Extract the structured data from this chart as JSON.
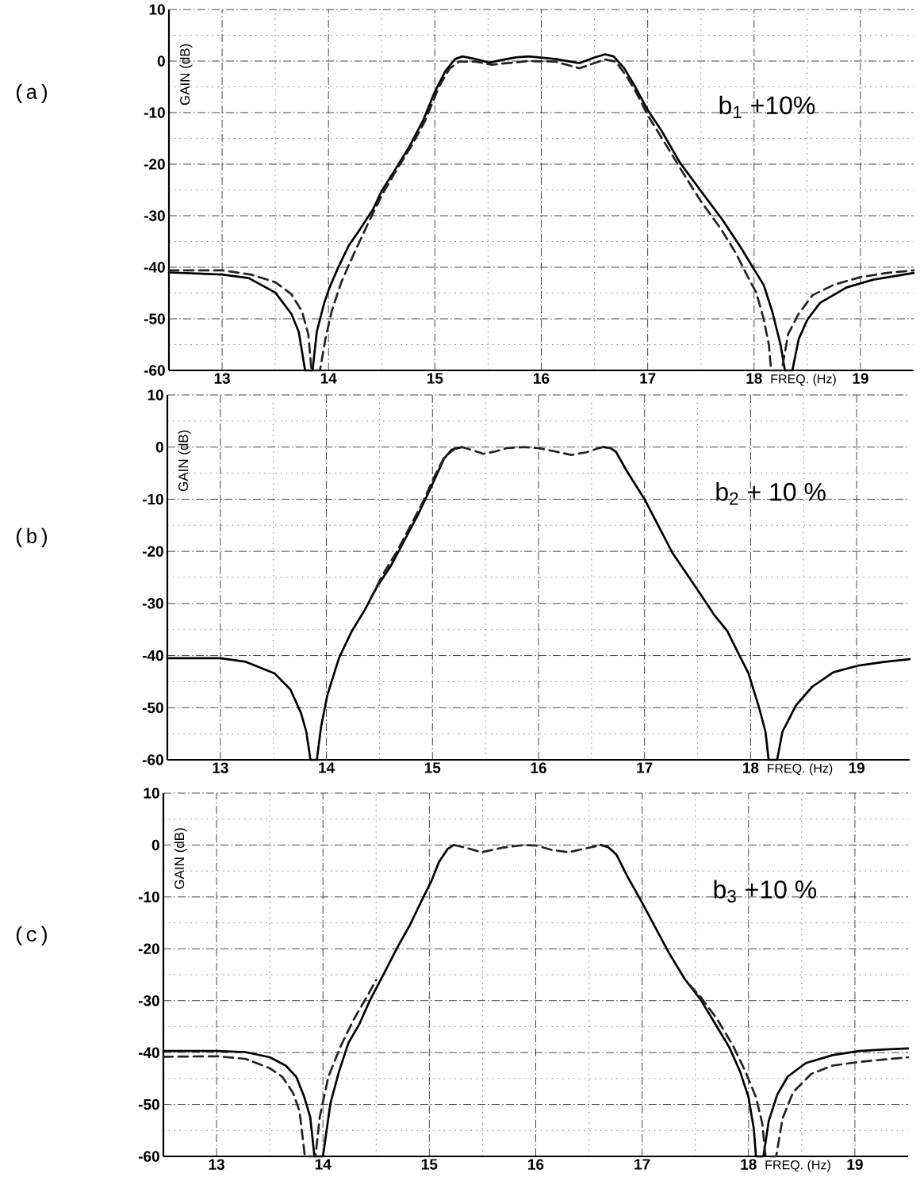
{
  "chart_data": [
    {
      "type": "line",
      "title": "(a)",
      "xlabel": "FREQ. (Hz)",
      "ylabel": "GAIN (dB)",
      "annotations": [
        "b$_{1}$ +10%"
      ],
      "xlim": [
        12.5,
        19.5
      ],
      "ylim": [
        -60,
        10
      ],
      "xticks": [
        13,
        14,
        15,
        16,
        17,
        18,
        19
      ],
      "yticks": [
        -60,
        -50,
        -40,
        -30,
        -20,
        -10,
        0,
        10
      ],
      "grid": true,
      "series": [
        {
          "color": "#000000",
          "line_style": "solid",
          "x": [
            12.5,
            13.0,
            13.25,
            13.5,
            13.65,
            13.72,
            13.78,
            13.85,
            13.89,
            13.96,
            14.01,
            14.09,
            14.19,
            14.29,
            14.42,
            14.5,
            14.64,
            14.76,
            14.89,
            15.0,
            15.1,
            15.19,
            15.26,
            15.38,
            15.51,
            15.63,
            15.76,
            15.88,
            16.13,
            16.36,
            16.5,
            16.6,
            16.68,
            16.78,
            16.88,
            17.0,
            17.13,
            17.3,
            17.5,
            17.7,
            17.88,
            18.0,
            18.09,
            18.17,
            18.25,
            18.29,
            18.36,
            18.42,
            18.5,
            18.62,
            18.87,
            19.12,
            19.5
          ],
          "values": [
            -41.0,
            -41.4,
            -42.1,
            -44.9,
            -49.0,
            -52.5,
            -60,
            -60,
            -52.5,
            -46.9,
            -43.9,
            -40.1,
            -35.8,
            -32.8,
            -28.7,
            -25.2,
            -20.6,
            -16.6,
            -11.5,
            -5.9,
            -1.9,
            0.4,
            0.9,
            0.4,
            -0.3,
            0.2,
            0.7,
            0.9,
            0.4,
            -0.4,
            0.7,
            1.3,
            0.9,
            -1.4,
            -4.9,
            -9.5,
            -13.5,
            -19.6,
            -25.2,
            -30.7,
            -36.3,
            -40.4,
            -43.4,
            -48.5,
            -55.1,
            -60,
            -60,
            -53.9,
            -50.2,
            -46.9,
            -43.9,
            -42.4,
            -41.1
          ]
        },
        {
          "color": "#222222",
          "line_style": "dashed",
          "x": [
            12.5,
            13.0,
            13.27,
            13.5,
            13.65,
            13.75,
            13.81,
            13.84,
            13.92,
            13.97,
            14.03,
            14.12,
            14.24,
            14.39,
            14.51,
            14.64,
            14.79,
            14.91,
            15.04,
            15.14,
            15.23,
            15.38,
            15.53,
            15.68,
            15.88,
            16.13,
            16.36,
            16.5,
            16.6,
            16.7,
            16.8,
            16.9,
            17.0,
            17.15,
            17.33,
            17.5,
            17.68,
            17.83,
            17.93,
            18.02,
            18.09,
            18.14,
            18.16,
            18.26,
            18.32,
            18.42,
            18.55,
            18.75,
            19.0,
            19.25,
            19.5
          ],
          "values": [
            -40.6,
            -40.6,
            -41.4,
            -42.9,
            -45.2,
            -48.5,
            -53.0,
            -60,
            -60,
            -54.0,
            -48.5,
            -42.9,
            -37.3,
            -30.7,
            -25.7,
            -21.1,
            -16.1,
            -11.5,
            -4.9,
            -1.4,
            -0.1,
            -0.1,
            -0.7,
            -0.4,
            0.0,
            -0.1,
            -1.4,
            -0.4,
            0.3,
            -0.1,
            -2.9,
            -6.4,
            -10.5,
            -15.5,
            -21.6,
            -27.2,
            -32.3,
            -37.3,
            -41.4,
            -44.9,
            -50.0,
            -55.1,
            -60,
            -60,
            -53.0,
            -49.0,
            -45.4,
            -43.4,
            -41.9,
            -41.1,
            -40.6
          ]
        }
      ]
    },
    {
      "type": "line",
      "title": "(b)",
      "xlabel": "FREQ. (Hz)",
      "ylabel": "GAIN (dB)",
      "annotations": [
        "b$_{2}$ + 10 %"
      ],
      "xlim": [
        12.5,
        19.5
      ],
      "ylim": [
        -60,
        10
      ],
      "xticks": [
        13,
        14,
        15,
        16,
        17,
        18,
        19
      ],
      "yticks": [
        -60,
        -50,
        -40,
        -30,
        -20,
        -10,
        0,
        10
      ],
      "grid": true,
      "series": [
        {
          "color": "#000000",
          "line_style": "solid",
          "x": [
            12.5,
            13.0,
            13.24,
            13.51,
            13.66,
            13.76,
            13.81,
            13.85,
            13.91,
            13.95,
            14.01,
            14.12,
            14.24,
            14.36,
            14.48,
            14.61,
            14.73,
            14.86,
            14.98,
            15.11,
            15.18,
            15.28,
            15.9,
            16.61,
            16.68,
            16.73,
            16.83,
            17.0,
            17.13,
            17.26,
            17.41,
            17.53,
            17.66,
            17.78,
            17.9,
            17.98,
            18.08,
            18.14,
            18.17,
            18.25,
            18.3,
            18.43,
            18.58,
            18.78,
            19.02,
            19.27,
            19.5
          ],
          "values": [
            -40.5,
            -40.5,
            -41.2,
            -43.4,
            -46.5,
            -51.0,
            -54.6,
            -60,
            -60,
            -53.6,
            -47.5,
            -40.4,
            -35.3,
            -31.3,
            -26.7,
            -22.7,
            -18.1,
            -13.1,
            -8.0,
            -2.2,
            -0.5,
            0,
            null,
            0,
            -0.2,
            -0.9,
            -4.5,
            -10.0,
            -15.1,
            -20.2,
            -24.7,
            -28.3,
            -32.3,
            -35.3,
            -40.2,
            -43.4,
            -50.0,
            -54.6,
            -60,
            -60,
            -54.6,
            -49.5,
            -46.0,
            -43.2,
            -41.9,
            -41.2,
            -40.7
          ]
        },
        {
          "color": "#222222",
          "line_style": "dashed",
          "x": [
            14.41,
            14.53,
            14.66,
            14.78,
            14.91,
            15.01,
            15.11,
            15.21,
            15.28,
            15.38,
            15.48,
            15.6,
            15.7,
            15.86,
            16.0,
            16.15,
            16.31,
            16.45,
            16.55,
            16.61,
            16.68
          ],
          "values": [
            -29.3,
            -24.5,
            -20.2,
            -15.6,
            -10.5,
            -6.0,
            -2.0,
            -0.3,
            0,
            -0.6,
            -1.3,
            -0.8,
            -0.2,
            0,
            -0.2,
            -0.8,
            -1.5,
            -1.0,
            -0.3,
            0,
            -0.2
          ]
        }
      ]
    },
    {
      "type": "line",
      "title": "(c)",
      "xlabel": "FREQ. (Hz)",
      "ylabel": "GAIN (dB)",
      "annotations": [
        "b$_{3}$ +10 %"
      ],
      "xlim": [
        12.5,
        19.5
      ],
      "ylim": [
        -60,
        10
      ],
      "xticks": [
        13,
        14,
        15,
        16,
        17,
        18,
        19
      ],
      "yticks": [
        -60,
        -50,
        -40,
        -30,
        -20,
        -10,
        0,
        10
      ],
      "grid": true,
      "series": [
        {
          "color": "#000000",
          "line_style": "solid",
          "x": [
            12.5,
            13.0,
            13.27,
            13.5,
            13.65,
            13.75,
            13.82,
            13.88,
            13.92,
            14.0,
            14.07,
            14.15,
            14.24,
            14.34,
            14.44,
            14.57,
            14.69,
            14.82,
            14.94,
            15.02,
            15.09,
            15.17,
            15.23,
            15.9,
            16.61,
            16.68,
            16.76,
            16.86,
            17.0,
            17.13,
            17.25,
            17.4,
            17.55,
            17.7,
            17.82,
            17.92,
            18.0,
            18.05,
            18.07,
            18.14,
            18.19,
            18.27,
            18.37,
            18.54,
            18.79,
            19.04,
            19.29,
            19.5
          ],
          "values": [
            -39.7,
            -39.7,
            -39.9,
            -40.9,
            -42.5,
            -44.7,
            -48.3,
            -52.4,
            -60,
            -60,
            -49.8,
            -43.7,
            -38.1,
            -34.6,
            -30.0,
            -24.9,
            -20.1,
            -15.3,
            -10.2,
            -6.9,
            -3.3,
            -0.8,
            0,
            null,
            0,
            -0.4,
            -1.9,
            -6.0,
            -11.1,
            -16.1,
            -20.7,
            -25.8,
            -29.8,
            -34.9,
            -39.0,
            -43.6,
            -48.6,
            -54.7,
            -60,
            -60,
            -53.2,
            -48.1,
            -44.6,
            -42.0,
            -40.5,
            -39.7,
            -39.4,
            -39.2
          ]
        },
        {
          "color": "#222222",
          "line_style": "dashed",
          "x": [
            12.5,
            13.0,
            13.27,
            13.5,
            13.62,
            13.72,
            13.78,
            13.83,
            13.93,
            13.97,
            14.05,
            14.17,
            14.29,
            14.42,
            14.5,
            14.9,
            15.23,
            15.34,
            15.49,
            15.69,
            15.89,
            16.01,
            16.14,
            16.31,
            16.46,
            16.61,
            16.67,
            17.0,
            17.45,
            17.55,
            17.7,
            17.85,
            17.97,
            18.07,
            18.13,
            18.16,
            18.26,
            18.32,
            18.42,
            18.59,
            18.79,
            19.04,
            19.29,
            19.5
          ],
          "values": [
            -40.8,
            -40.7,
            -41.2,
            -43.0,
            -44.7,
            -47.8,
            -51.3,
            -60,
            -60,
            -52.4,
            -44.7,
            -38.6,
            -33.6,
            -29.0,
            -26.0,
            null,
            0,
            -0.5,
            -1.4,
            -0.5,
            0,
            -0.1,
            -0.9,
            -1.4,
            -0.7,
            0,
            -0.2,
            null,
            -27.0,
            -29.3,
            -33.4,
            -38.5,
            -43.6,
            -48.6,
            -53.7,
            -60,
            -60,
            -52.7,
            -47.6,
            -44.1,
            -42.5,
            -41.8,
            -41.3,
            -40.9
          ]
        }
      ]
    }
  ]
}
